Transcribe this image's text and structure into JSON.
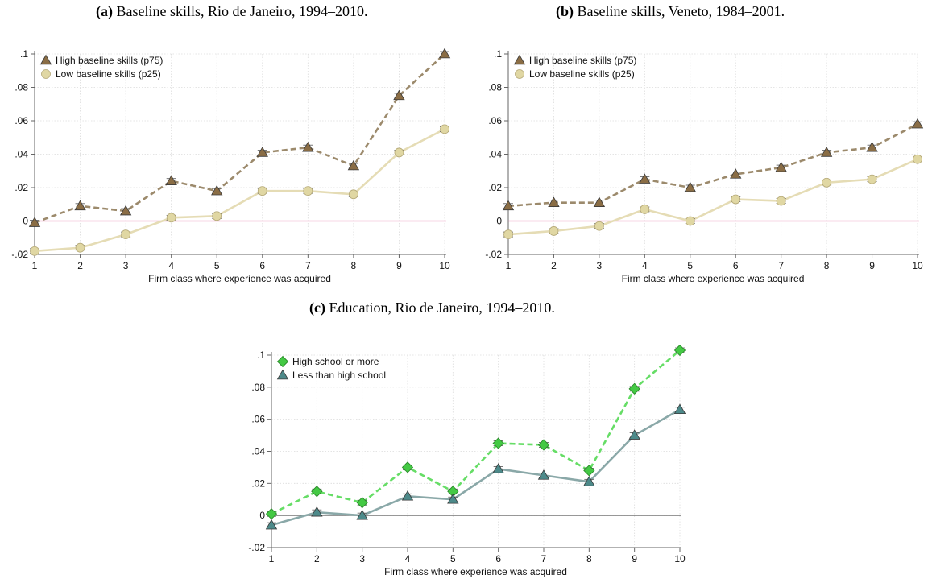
{
  "panels": [
    {
      "label": "(a)",
      "caption": "Baseline skills, Rio de Janeiro, 1994–2010."
    },
    {
      "label": "(b)",
      "caption": "Baseline skills, Veneto, 1984–2001."
    },
    {
      "label": "(c)",
      "caption": "Education, Rio de Janeiro, 1994–2010."
    }
  ],
  "chart_data": [
    {
      "type": "line",
      "xlabel": "Firm class where experience was acquired",
      "ylabel": "",
      "x": [
        1,
        2,
        3,
        4,
        5,
        6,
        7,
        8,
        9,
        10
      ],
      "xticks": [
        "1",
        "2",
        "3",
        "4",
        "5",
        "6",
        "7",
        "8",
        "9",
        "10"
      ],
      "yticks": [
        -0.02,
        0,
        0.02,
        0.04,
        0.06,
        0.08,
        0.1
      ],
      "ytick_labels": [
        "-.02",
        "0",
        ".02",
        ".04",
        ".06",
        ".08",
        ".1"
      ],
      "ylim": [
        -0.02,
        0.1
      ],
      "xlim": [
        1,
        10
      ],
      "grid": true,
      "legend_position": "top-left",
      "reference_line": {
        "y": 0,
        "color": "#e0609a"
      },
      "series": [
        {
          "name": "High baseline skills (p75)",
          "values": [
            -0.001,
            0.009,
            0.006,
            0.024,
            0.018,
            0.041,
            0.044,
            0.033,
            0.075,
            0.1
          ],
          "color": "#9c8a6c",
          "marker": "triangle",
          "marker_fill": "#8a6d45",
          "dashed": true
        },
        {
          "name": "Low baseline skills (p25)",
          "values": [
            -0.018,
            -0.016,
            -0.008,
            0.002,
            0.003,
            0.018,
            0.018,
            0.016,
            0.041,
            0.055
          ],
          "color": "#e5dcb5",
          "marker": "circle",
          "marker_fill": "#e0d7a3",
          "dashed": false
        }
      ]
    },
    {
      "type": "line",
      "xlabel": "Firm class where experience was acquired",
      "ylabel": "",
      "x": [
        1,
        2,
        3,
        4,
        5,
        6,
        7,
        8,
        9,
        10
      ],
      "xticks": [
        "1",
        "2",
        "3",
        "4",
        "5",
        "6",
        "7",
        "8",
        "9",
        "10"
      ],
      "yticks": [
        -0.02,
        0,
        0.02,
        0.04,
        0.06,
        0.08,
        0.1
      ],
      "ytick_labels": [
        "-.02",
        "0",
        ".02",
        ".04",
        ".06",
        ".08",
        ".1"
      ],
      "ylim": [
        -0.02,
        0.1
      ],
      "xlim": [
        1,
        10
      ],
      "grid": true,
      "legend_position": "top-left",
      "reference_line": {
        "y": 0,
        "color": "#e0609a"
      },
      "series": [
        {
          "name": "High baseline skills (p75)",
          "values": [
            0.009,
            0.011,
            0.011,
            0.025,
            0.02,
            0.028,
            0.032,
            0.041,
            0.044,
            0.058
          ],
          "color": "#9c8a6c",
          "marker": "triangle",
          "marker_fill": "#8a6d45",
          "dashed": true
        },
        {
          "name": "Low baseline skills (p25)",
          "values": [
            -0.008,
            -0.006,
            -0.003,
            0.007,
            0.0,
            0.013,
            0.012,
            0.023,
            0.025,
            0.037
          ],
          "color": "#e5dcb5",
          "marker": "circle",
          "marker_fill": "#e0d7a3",
          "dashed": false
        }
      ]
    },
    {
      "type": "line",
      "xlabel": "Firm class where experience was acquired",
      "ylabel": "",
      "x": [
        1,
        2,
        3,
        4,
        5,
        6,
        7,
        8,
        9,
        10
      ],
      "xticks": [
        "1",
        "2",
        "3",
        "4",
        "5",
        "6",
        "7",
        "8",
        "9",
        "10"
      ],
      "yticks": [
        -0.02,
        0,
        0.02,
        0.04,
        0.06,
        0.08,
        0.1
      ],
      "ytick_labels": [
        "-.02",
        "0",
        ".02",
        ".04",
        ".06",
        ".08",
        ".1"
      ],
      "ylim": [
        -0.02,
        0.1
      ],
      "xlim": [
        1,
        10
      ],
      "grid": true,
      "legend_position": "top-left",
      "reference_line": {
        "y": 0,
        "color": "#777777"
      },
      "series": [
        {
          "name": "High school or more",
          "values": [
            0.001,
            0.015,
            0.008,
            0.03,
            0.015,
            0.045,
            0.044,
            0.028,
            0.079,
            0.103
          ],
          "color": "#66dd66",
          "marker": "diamond",
          "marker_fill": "#44c944",
          "dashed": true
        },
        {
          "name": "Less than high school",
          "values": [
            -0.006,
            0.002,
            0.0,
            0.012,
            0.01,
            0.029,
            0.025,
            0.021,
            0.05,
            0.066
          ],
          "color": "#8aa8a8",
          "marker": "triangle",
          "marker_fill": "#4d8a8a",
          "dashed": false
        }
      ]
    }
  ]
}
